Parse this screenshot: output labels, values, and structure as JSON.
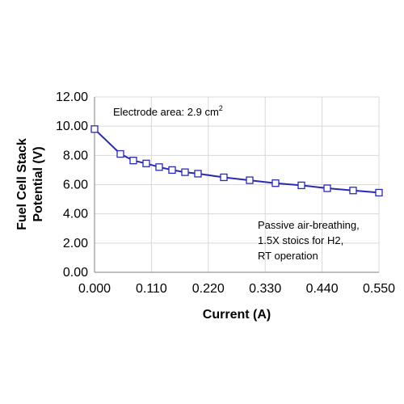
{
  "chart_data": {
    "type": "line",
    "xlabel": "Current  (A)",
    "ylabel_lines": [
      "Fuel Cell Stack",
      "Potential (V)"
    ],
    "xlim": [
      0,
      0.55
    ],
    "ylim": [
      0,
      12
    ],
    "x_ticks": [
      "0.000",
      "0.110",
      "0.220",
      "0.330",
      "0.440",
      "0.550"
    ],
    "y_ticks": [
      "0.00",
      "2.00",
      "4.00",
      "6.00",
      "8.00",
      "10.00",
      "12.00"
    ],
    "grid": true,
    "series_color": "#2a2ab4",
    "series": [
      {
        "x": [
          0,
          0.05,
          0.075,
          0.1,
          0.125,
          0.15,
          0.175,
          0.2,
          0.25,
          0.3,
          0.35,
          0.4,
          0.45,
          0.5,
          0.55
        ],
        "y": [
          9.8,
          8.1,
          7.65,
          7.45,
          7.2,
          7.0,
          6.85,
          6.75,
          6.5,
          6.3,
          6.1,
          5.95,
          5.75,
          5.6,
          5.45
        ]
      }
    ],
    "annotations": {
      "electrode_prefix": "Electrode area: 2.9 cm",
      "electrode_sup": "2",
      "conditions": [
        "Passive air-breathing,",
        "1.5X stoics for H2,",
        "RT operation"
      ]
    }
  }
}
